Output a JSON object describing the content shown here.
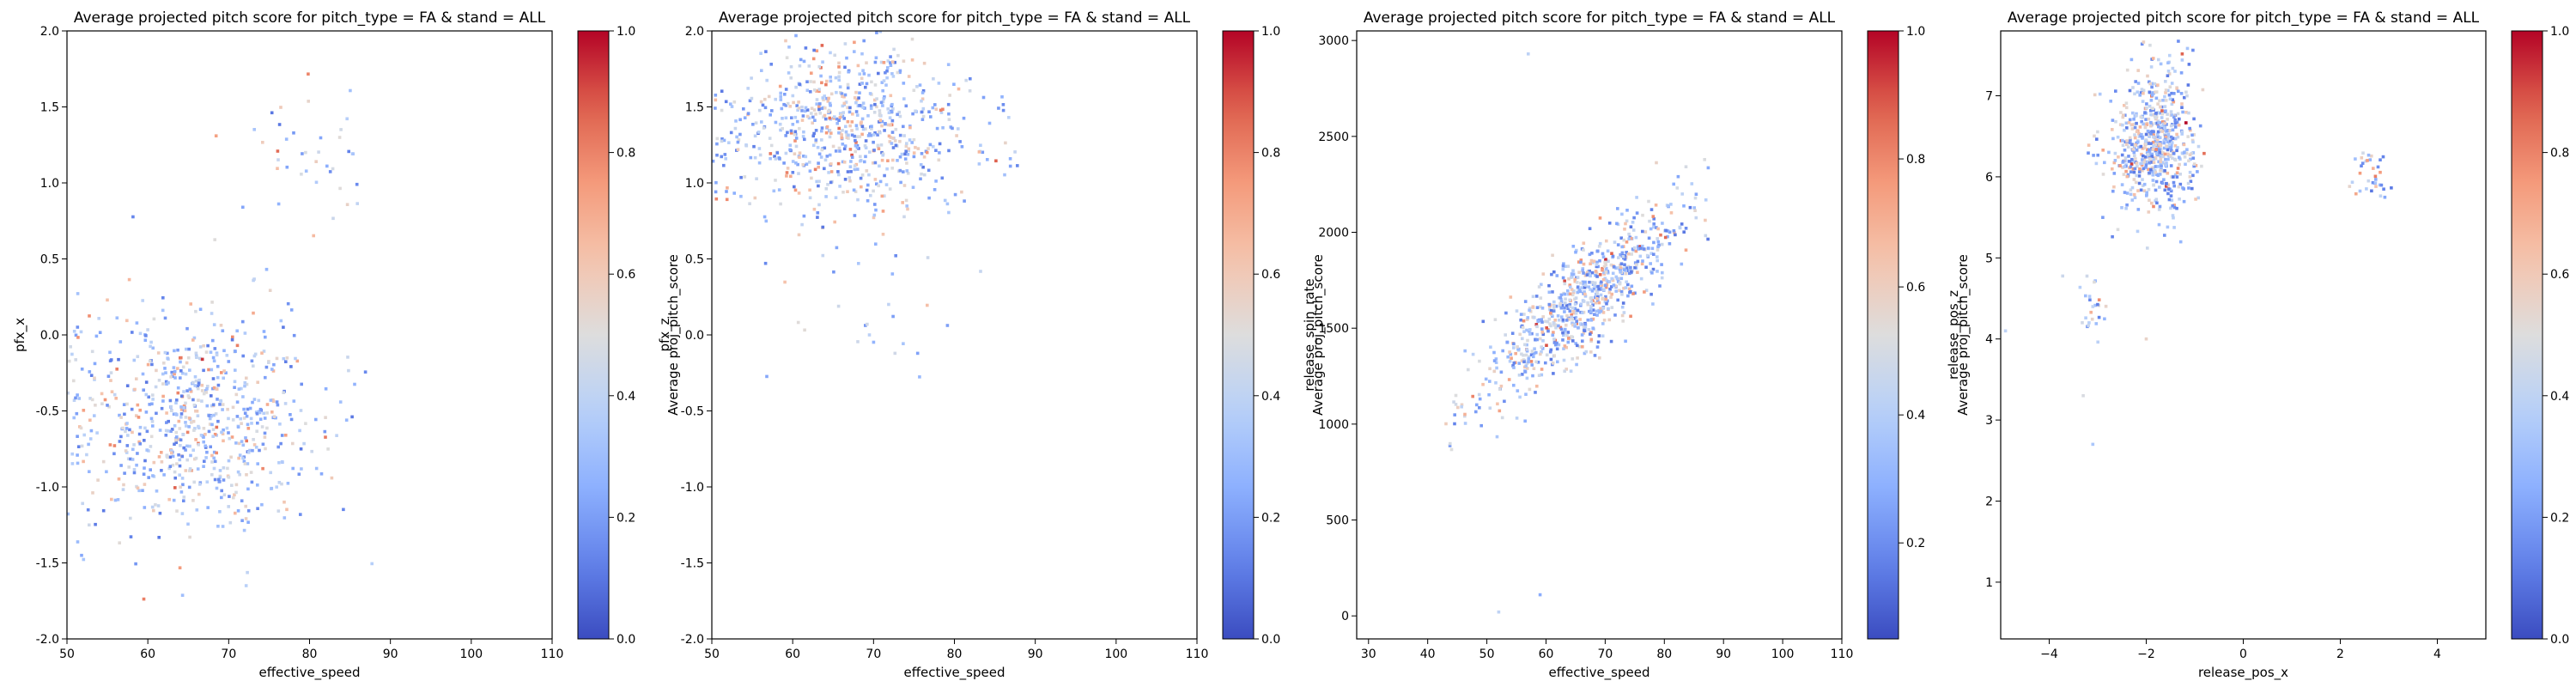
{
  "chart_data": [
    {
      "type": "scatter",
      "title": "Average projected pitch score for pitch_type = FA & stand = ALL",
      "xlabel": "effective_speed",
      "ylabel": "pfx_x",
      "xlim": [
        50,
        110
      ],
      "ylim": [
        -2.0,
        2.0
      ],
      "xticks": [
        "50",
        "60",
        "70",
        "80",
        "90",
        "100",
        "110"
      ],
      "yticks": [
        "-2.0",
        "-1.5",
        "-1.0",
        "-0.5",
        "0.0",
        "0.5",
        "1.0",
        "1.5",
        "2.0"
      ],
      "colorbar": {
        "label": "Average proj_pitch_score",
        "range": [
          0.0,
          1.0
        ],
        "ticks": [
          "0.0",
          "0.2",
          "0.4",
          "0.6",
          "0.8",
          "1.0"
        ],
        "colormap": "coolwarm"
      },
      "clusters": [
        {
          "cx": 66,
          "cy": -0.55,
          "sx": 8,
          "sy": 0.38,
          "n": 750,
          "xmin": 50,
          "xmax": 88
        },
        {
          "cx": 79,
          "cy": 1.2,
          "sx": 5,
          "sy": 0.22,
          "n": 40,
          "xmin": 60,
          "xmax": 86
        }
      ]
    },
    {
      "type": "scatter",
      "title": "Average projected pitch score for pitch_type = FA & stand = ALL",
      "xlabel": "effective_speed",
      "ylabel": "pfx_z",
      "xlim": [
        50,
        110
      ],
      "ylim": [
        -2.0,
        2.0
      ],
      "xticks": [
        "50",
        "60",
        "70",
        "80",
        "90",
        "100",
        "110"
      ],
      "yticks": [
        "-2.0",
        "-1.5",
        "-1.0",
        "-0.5",
        "0.0",
        "0.5",
        "1.0",
        "1.5",
        "2.0"
      ],
      "colorbar": {
        "label": "Average proj_pitch_score",
        "range": [
          0.0,
          1.0
        ],
        "ticks": [
          "0.0",
          "0.2",
          "0.4",
          "0.6",
          "0.8",
          "1.0"
        ],
        "colormap": "coolwarm"
      },
      "clusters": [
        {
          "cx": 67,
          "cy": 1.35,
          "sx": 8,
          "sy": 0.28,
          "n": 750,
          "xmin": 50,
          "xmax": 88
        },
        {
          "cx": 70,
          "cy": 0.2,
          "sx": 7,
          "sy": 0.3,
          "n": 25,
          "xmin": 55,
          "xmax": 85
        }
      ]
    },
    {
      "type": "scatter",
      "title": "Average projected pitch score for pitch_type = FA & stand = ALL",
      "xlabel": "effective_speed",
      "ylabel": "release_spin_rate",
      "xlim": [
        28,
        110
      ],
      "ylim": [
        -120,
        3050
      ],
      "xticks": [
        "30",
        "40",
        "50",
        "60",
        "70",
        "80",
        "90",
        "100",
        "110"
      ],
      "yticks": [
        "0",
        "500",
        "1000",
        "1500",
        "2000",
        "2500",
        "3000"
      ],
      "colorbar": {
        "label": "Average proj_pitch_score",
        "range": [
          0.05,
          1.0
        ],
        "ticks": [
          "0.2",
          "0.4",
          "0.6",
          "0.8",
          "1.0"
        ],
        "colormap": "coolwarm"
      },
      "trend": {
        "slope": 25,
        "intercept": 0,
        "noise": 130
      },
      "clusters": [
        {
          "cx": 66,
          "sx": 8.5,
          "n": 800,
          "xmin": 43,
          "xmax": 88
        }
      ],
      "outliers": [
        [
          52,
          20
        ],
        [
          57,
          2930
        ],
        [
          59,
          110
        ]
      ]
    },
    {
      "type": "scatter",
      "title": "Average projected pitch score for pitch_type = FA & stand = ALL",
      "xlabel": "release_pos_x",
      "ylabel": "release_pos_z",
      "xlim": [
        -5.0,
        5.0
      ],
      "ylim": [
        0.3,
        7.8
      ],
      "xticks": [
        "−4",
        "−2",
        "0",
        "2",
        "4"
      ],
      "yticks": [
        "1",
        "2",
        "3",
        "4",
        "5",
        "6",
        "7"
      ],
      "colorbar": {
        "label": "Average proj_pitch_score",
        "range": [
          0.0,
          1.0
        ],
        "ticks": [
          "0.0",
          "0.2",
          "0.4",
          "0.6",
          "0.8",
          "1.0"
        ],
        "colormap": "coolwarm"
      },
      "clusters": [
        {
          "cx": -1.8,
          "cy": 6.4,
          "sx": 0.45,
          "sy": 0.45,
          "n": 650,
          "xmin": -3.3,
          "xmax": -0.8
        },
        {
          "cx": -3.05,
          "cy": 4.4,
          "sx": 0.15,
          "sy": 0.2,
          "n": 25,
          "xmin": -3.4,
          "xmax": -2.7
        },
        {
          "cx": 2.6,
          "cy": 6.0,
          "sx": 0.25,
          "sy": 0.18,
          "n": 35,
          "xmin": 2.1,
          "xmax": 3.1
        }
      ],
      "outliers": [
        [
          -4.9,
          4.1
        ],
        [
          -3.3,
          3.3
        ],
        [
          -3.1,
          2.7
        ],
        [
          -2.0,
          4.0
        ]
      ]
    }
  ]
}
